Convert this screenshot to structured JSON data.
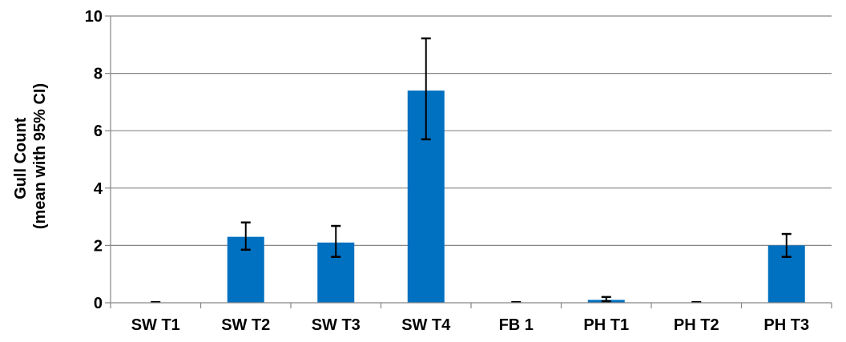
{
  "chart_data": {
    "type": "bar",
    "title": "",
    "xlabel": "",
    "ylabel_lines": [
      "Gull Count",
      "(mean with 95% CI)"
    ],
    "categories": [
      "SW T1",
      "SW T2",
      "SW T3",
      "SW T4",
      "FB 1",
      "PH T1",
      "PH T2",
      "PH T3"
    ],
    "values": [
      0.0,
      2.3,
      2.1,
      7.4,
      0.0,
      0.1,
      0.0,
      2.0
    ],
    "ci_lower": [
      0.0,
      1.85,
      1.6,
      5.7,
      0.0,
      0.05,
      0.0,
      1.6
    ],
    "ci_upper": [
      0.0,
      2.8,
      2.68,
      9.22,
      0.0,
      0.2,
      0.0,
      2.4
    ],
    "ylim": [
      0,
      10
    ],
    "yticks": [
      "0",
      "2",
      "4",
      "6",
      "8",
      "10"
    ],
    "grid": true,
    "legend": "none",
    "colors": {
      "bar": "#0070C0",
      "grid": "#868686",
      "axis": "#868686",
      "error_bar": "#000000"
    }
  }
}
